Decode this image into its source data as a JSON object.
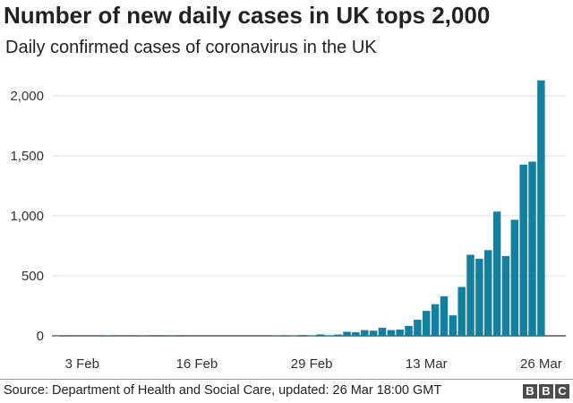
{
  "header": {
    "title": "Number of new daily cases in UK tops 2,000",
    "subtitle": "Daily confirmed cases of coronavirus in the UK"
  },
  "footer": {
    "source": "Source: Department of Health and Social Care, updated: 26 Mar 18:00 GMT",
    "logo_letters": [
      "B",
      "B",
      "C"
    ]
  },
  "chart_data": {
    "type": "bar",
    "title": "Number of new daily cases in UK tops 2,000",
    "subtitle": "Daily confirmed cases of coronavirus in the UK",
    "xlabel": "",
    "ylabel": "",
    "ylim": [
      0,
      2150
    ],
    "yticks": [
      0,
      500,
      1000,
      1500,
      2000
    ],
    "ytick_labels": [
      "0",
      "500",
      "1,000",
      "1,500",
      "2,000"
    ],
    "xtick_labels": [
      "3 Feb",
      "16 Feb",
      "29 Feb",
      "13 Mar",
      "26 Mar"
    ],
    "xtick_dates": [
      "2020-02-03",
      "2020-02-16",
      "2020-02-29",
      "2020-03-13",
      "2020-03-26"
    ],
    "grid": true,
    "bar_color": "#1380a1",
    "categories": [
      "2020-01-31",
      "2020-02-01",
      "2020-02-02",
      "2020-02-03",
      "2020-02-04",
      "2020-02-05",
      "2020-02-06",
      "2020-02-07",
      "2020-02-08",
      "2020-02-09",
      "2020-02-10",
      "2020-02-11",
      "2020-02-12",
      "2020-02-13",
      "2020-02-14",
      "2020-02-15",
      "2020-02-16",
      "2020-02-17",
      "2020-02-18",
      "2020-02-19",
      "2020-02-20",
      "2020-02-21",
      "2020-02-22",
      "2020-02-23",
      "2020-02-24",
      "2020-02-25",
      "2020-02-26",
      "2020-02-27",
      "2020-02-28",
      "2020-02-29",
      "2020-03-01",
      "2020-03-02",
      "2020-03-03",
      "2020-03-04",
      "2020-03-05",
      "2020-03-06",
      "2020-03-07",
      "2020-03-08",
      "2020-03-09",
      "2020-03-10",
      "2020-03-11",
      "2020-03-12",
      "2020-03-13",
      "2020-03-14",
      "2020-03-15",
      "2020-03-16",
      "2020-03-17",
      "2020-03-18",
      "2020-03-19",
      "2020-03-20",
      "2020-03-21",
      "2020-03-22",
      "2020-03-23",
      "2020-03-24",
      "2020-03-25",
      "2020-03-26"
    ],
    "values": [
      2,
      0,
      0,
      0,
      0,
      0,
      1,
      0,
      0,
      0,
      5,
      0,
      0,
      1,
      0,
      0,
      0,
      0,
      0,
      0,
      0,
      0,
      0,
      0,
      0,
      4,
      0,
      3,
      7,
      3,
      12,
      4,
      11,
      34,
      30,
      48,
      43,
      67,
      48,
      52,
      83,
      134,
      208,
      264,
      330,
      171,
      407,
      676,
      643,
      714,
      1035,
      665,
      967,
      1427,
      1452,
      2129
    ]
  }
}
